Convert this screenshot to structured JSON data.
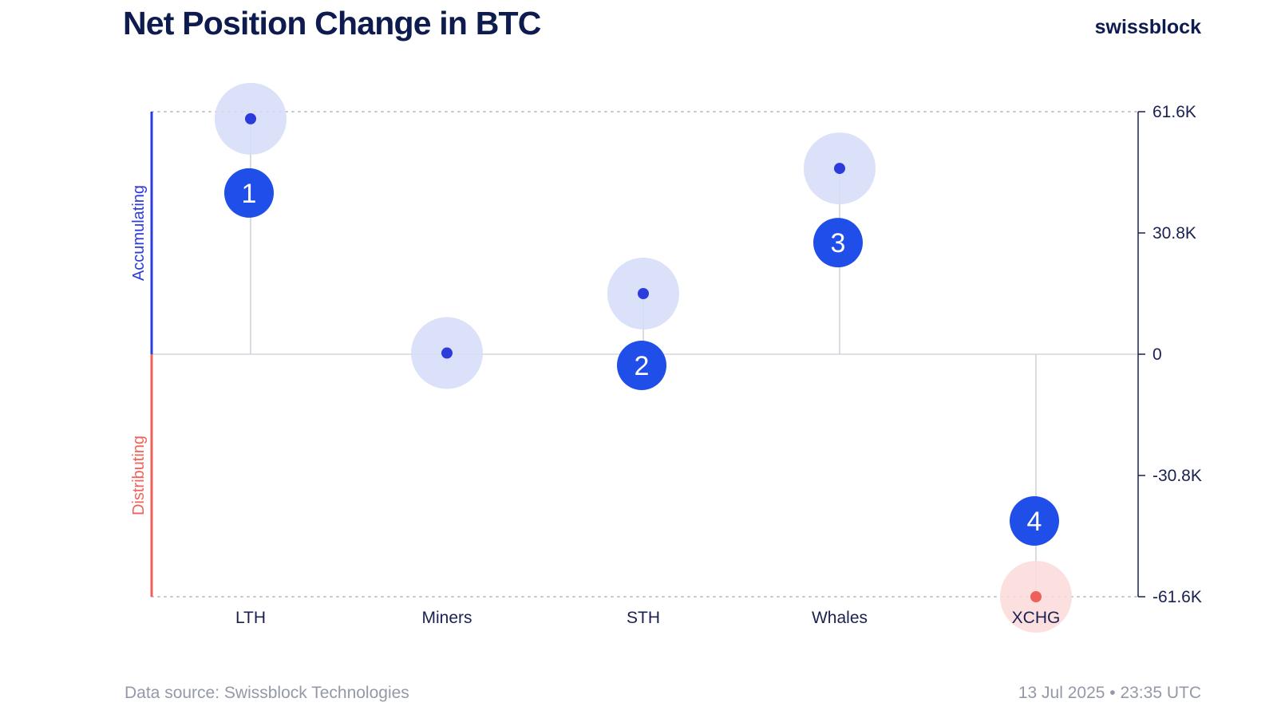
{
  "header": {
    "title": "Net Position Change in BTC",
    "brand": "swissblock"
  },
  "footer": {
    "source": "Data source: Swissblock Technologies",
    "timestamp": "13 Jul 2025 • 23:35 UTC"
  },
  "colors": {
    "accumulating": "#2b3bdc",
    "distributing": "#f0605a",
    "halo_positive": "#d6def7",
    "halo_negative": "#fcdcdc",
    "badge": "#1f4fe8",
    "axis": "#1a2150"
  },
  "chart_data": {
    "type": "scatter",
    "title": "Net Position Change in BTC",
    "categories": [
      "LTH",
      "Miners",
      "STH",
      "Whales",
      "XCHG"
    ],
    "values": [
      59800,
      300,
      15400,
      47200,
      -61600
    ],
    "badges": [
      "1",
      "",
      "2",
      "3",
      "4"
    ],
    "ylim": [
      -61600,
      61600
    ],
    "y_ticks": [
      61600,
      30800,
      0,
      -30800,
      -61600
    ],
    "y_tick_labels": [
      "61.6K",
      "30.8K",
      "0",
      "-30.8K",
      "-61.6K"
    ],
    "side_labels": {
      "positive": "Accumulating",
      "negative": "Distributing"
    },
    "grid": false,
    "legend": "none"
  }
}
